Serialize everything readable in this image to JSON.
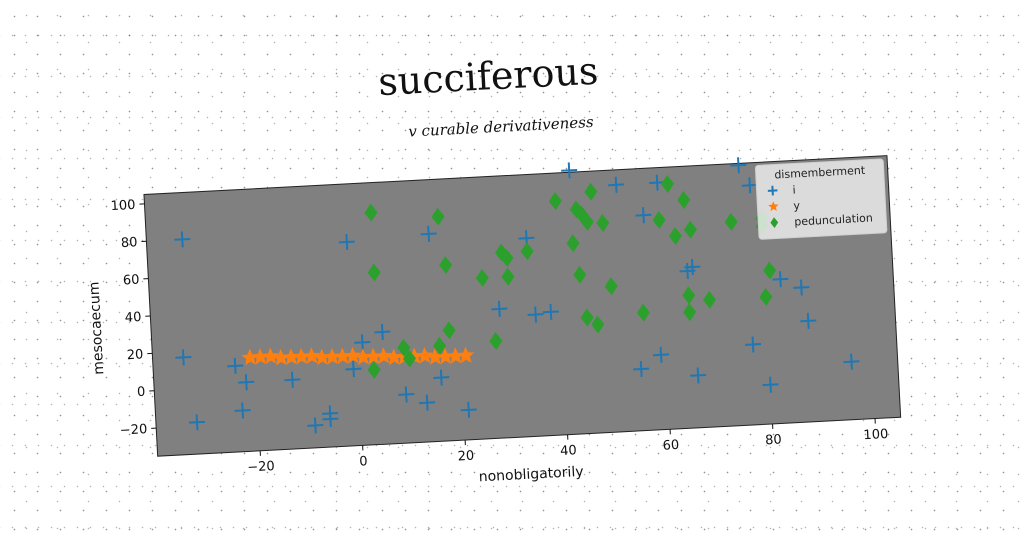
{
  "chart_data": {
    "type": "scatter",
    "title": "succiferous",
    "subtitle": "v curable derivativeness",
    "xlabel": "nonobligatorily",
    "ylabel": "mesocaecum",
    "xlim": [
      -40,
      105
    ],
    "ylim": [
      -35,
      105
    ],
    "xticks": [
      -20,
      0,
      20,
      40,
      60,
      80,
      100
    ],
    "yticks": [
      -20,
      0,
      20,
      40,
      60,
      80,
      100
    ],
    "xtick_labels": [
      "−20",
      "0",
      "20",
      "40",
      "60",
      "80",
      "100"
    ],
    "ytick_labels": [
      "−20",
      "0",
      "20",
      "40",
      "60",
      "80",
      "100"
    ],
    "grid": false,
    "background": "#808080",
    "legend": {
      "title": "dismemberment",
      "placement": "top-right"
    },
    "series": [
      {
        "name": "i",
        "marker": "plus",
        "color": "#1f77b4",
        "points": [
          [
            -33,
            80
          ],
          [
            -34,
            17
          ],
          [
            -32,
            -18
          ],
          [
            -24,
            11
          ],
          [
            -22,
            2
          ],
          [
            -23,
            -13
          ],
          [
            -13,
            2
          ],
          [
            -9,
            -23
          ],
          [
            -6,
            -20
          ],
          [
            -6,
            -17
          ],
          [
            -1,
            74
          ],
          [
            -1,
            6
          ],
          [
            1,
            20
          ],
          [
            5,
            25
          ],
          [
            9,
            -9
          ],
          [
            13,
            -14
          ],
          [
            15,
            76
          ],
          [
            16,
            -1
          ],
          [
            21,
            -19
          ],
          [
            28,
            34
          ],
          [
            34,
            71
          ],
          [
            35,
            30
          ],
          [
            38,
            31
          ],
          [
            43,
            106
          ],
          [
            52,
            97
          ],
          [
            55,
            -2
          ],
          [
            57,
            80
          ],
          [
            59,
            5
          ],
          [
            60,
            97
          ],
          [
            66,
            51
          ],
          [
            65,
            49
          ],
          [
            66,
            -7
          ],
          [
            76,
            104
          ],
          [
            77,
            8
          ],
          [
            78,
            93
          ],
          [
            80,
            -14
          ],
          [
            83,
            42
          ],
          [
            87,
            37
          ],
          [
            88,
            19
          ],
          [
            96,
            -4
          ]
        ]
      },
      {
        "name": "y",
        "marker": "star",
        "color": "#ff7f0e",
        "points": [
          [
            -21,
            15
          ],
          [
            -19,
            15
          ],
          [
            -17,
            15
          ],
          [
            -15,
            14
          ],
          [
            -13,
            14
          ],
          [
            -11,
            14
          ],
          [
            -9,
            14
          ],
          [
            -7,
            13
          ],
          [
            -5,
            13
          ],
          [
            -3,
            13
          ],
          [
            -1,
            13
          ],
          [
            1,
            12
          ],
          [
            3,
            12
          ],
          [
            5,
            12
          ],
          [
            7,
            11
          ],
          [
            9,
            11
          ],
          [
            11,
            11
          ],
          [
            13,
            11
          ],
          [
            15,
            10
          ],
          [
            17,
            10
          ],
          [
            19,
            10
          ],
          [
            21,
            10
          ]
        ]
      },
      {
        "name": "pedunculation",
        "marker": "diamond",
        "color": "#2ca02c",
        "points": [
          [
            4,
            89
          ],
          [
            4,
            57
          ],
          [
            3,
            5
          ],
          [
            9,
            16
          ],
          [
            10,
            10
          ],
          [
            16,
            16
          ],
          [
            17,
            85
          ],
          [
            18,
            59
          ],
          [
            18,
            24
          ],
          [
            25,
            51
          ],
          [
            27,
            17
          ],
          [
            29,
            64
          ],
          [
            30,
            61
          ],
          [
            30,
            51
          ],
          [
            34,
            64
          ],
          [
            40,
            90
          ],
          [
            43,
            67
          ],
          [
            44,
            85
          ],
          [
            44,
            50
          ],
          [
            45,
            82
          ],
          [
            45,
            27
          ],
          [
            46,
            78
          ],
          [
            47,
            23
          ],
          [
            47,
            94
          ],
          [
            49,
            77
          ],
          [
            50,
            43
          ],
          [
            56,
            28
          ],
          [
            60,
            77
          ],
          [
            62,
            96
          ],
          [
            63,
            68
          ],
          [
            65,
            36
          ],
          [
            65,
            27
          ],
          [
            66,
            71
          ],
          [
            65,
            87
          ],
          [
            69,
            33
          ],
          [
            74,
            74
          ],
          [
            80,
            71
          ],
          [
            80,
            75
          ],
          [
            80,
            33
          ],
          [
            81,
            47
          ]
        ]
      }
    ]
  }
}
